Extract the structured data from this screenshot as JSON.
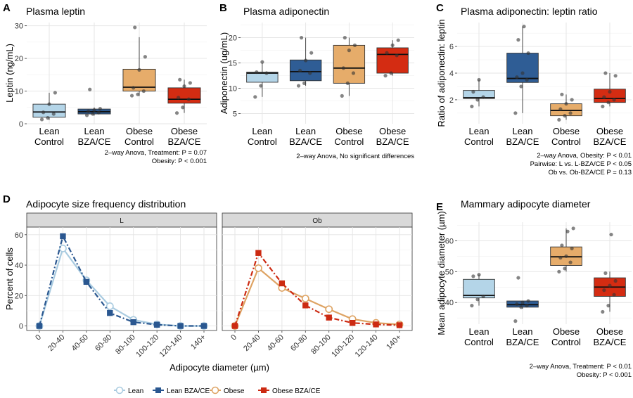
{
  "chart_data": [
    {
      "id": "A",
      "type": "box",
      "title": "Plasma leptin",
      "ylabel": "Leptin (ng/mL)",
      "ylim": [
        0,
        31
      ],
      "yticks": [
        0,
        10,
        20,
        30
      ],
      "categories": [
        "Lean\nControl",
        "Lean\nBZA/CE",
        "Obese\nControl",
        "Obese\nBZA/CE"
      ],
      "boxes": [
        {
          "q1": 2.0,
          "median": 3.6,
          "q3": 6.0,
          "lo": 1.2,
          "hi": 9.5,
          "points": [
            1.3,
            1.8,
            3.0,
            3.5,
            6.0,
            9.5
          ]
        },
        {
          "q1": 3.0,
          "median": 3.7,
          "q3": 4.5,
          "lo": 2.5,
          "hi": 5.0,
          "points": [
            2.6,
            3.0,
            3.4,
            3.8,
            4.2,
            4.6,
            10.5
          ]
        },
        {
          "q1": 10.0,
          "median": 11.2,
          "q3": 16.7,
          "lo": 8.5,
          "hi": 26.5,
          "points": [
            8.6,
            9.0,
            10.0,
            11.0,
            16.5,
            20.5,
            29.5
          ]
        },
        {
          "q1": 6.3,
          "median": 7.5,
          "q3": 11.0,
          "lo": 3.3,
          "hi": 13.5,
          "points": [
            3.3,
            5.0,
            7.5,
            8.0,
            11.5,
            12.5,
            13.5
          ]
        }
      ],
      "notes": [
        "2–way Anova, Treatment: P = 0.07",
        "Obesity: P < 0.001"
      ]
    },
    {
      "id": "B",
      "type": "box",
      "title": "Plasma adiponectin",
      "ylabel": "Adiponectin (ug/mL)",
      "ylim": [
        3,
        23
      ],
      "yticks": [
        5,
        10,
        15,
        20
      ],
      "categories": [
        "Lean\nControl",
        "Lean\nBZA/CE",
        "Obese\nControl",
        "Obese\nBZA/CE"
      ],
      "boxes": [
        {
          "q1": 11.2,
          "median": 13.0,
          "q3": 13.2,
          "lo": 8.3,
          "hi": 15.0,
          "points": [
            8.3,
            10.5,
            13.0,
            13.2,
            15.2
          ]
        },
        {
          "q1": 11.5,
          "median": 13.3,
          "q3": 15.6,
          "lo": 10.5,
          "hi": 20.0,
          "points": [
            10.5,
            11.0,
            13.0,
            13.5,
            15.5,
            17.0,
            20.0
          ]
        },
        {
          "q1": 11.0,
          "median": 14.0,
          "q3": 18.5,
          "lo": 8.5,
          "hi": 20.0,
          "points": [
            8.5,
            11.0,
            13.0,
            14.0,
            17.5,
            18.5,
            20.0
          ]
        },
        {
          "q1": 13.0,
          "median": 16.7,
          "q3": 18.0,
          "lo": 12.5,
          "hi": 19.5,
          "points": [
            12.5,
            13.0,
            16.5,
            17.0,
            18.5,
            19.5
          ]
        }
      ],
      "notes": [
        "2–way Anova, No significant differences"
      ]
    },
    {
      "id": "C",
      "type": "box",
      "title": "Plasma adiponectin: leptin ratio",
      "ylabel": "Ratio of adiponectin: leptin",
      "ylim": [
        0.2,
        7.8
      ],
      "yticks": [
        2,
        4,
        6
      ],
      "categories": [
        "Lean\nControl",
        "Lean\nBZA/CE",
        "Obese\nControl",
        "Obese\nBZA/CE"
      ],
      "boxes": [
        {
          "q1": 2.1,
          "median": 2.15,
          "q3": 2.7,
          "lo": 1.5,
          "hi": 3.5,
          "points": [
            1.5,
            2.0,
            2.2,
            2.6,
            3.5
          ]
        },
        {
          "q1": 3.3,
          "median": 3.6,
          "q3": 5.5,
          "lo": 1.0,
          "hi": 7.5,
          "points": [
            1.0,
            3.0,
            3.5,
            3.7,
            4.0,
            5.5,
            6.5,
            7.5
          ]
        },
        {
          "q1": 0.8,
          "median": 1.2,
          "q3": 1.7,
          "lo": 0.5,
          "hi": 2.4,
          "points": [
            0.5,
            0.8,
            1.0,
            1.3,
            1.7,
            2.0,
            2.4
          ]
        },
        {
          "q1": 1.8,
          "median": 2.1,
          "q3": 2.8,
          "lo": 1.5,
          "hi": 4.0,
          "points": [
            1.5,
            1.8,
            2.0,
            2.2,
            2.6,
            3.8,
            4.0
          ]
        }
      ],
      "notes": [
        "2–way Anova, Obesity: P < 0.01",
        "Pairwise: L vs. L-BZA/CE P < 0.05",
        "Ob vs. Ob-BZA/CE P = 0.13"
      ]
    },
    {
      "id": "D",
      "type": "line",
      "title": "Adipocyte size frequency distribution",
      "ylabel": "Percent of cells",
      "xlabel": "Adipocyte diameter (µm)",
      "ylim": [
        -3,
        65
      ],
      "yticks": [
        0,
        20,
        40,
        60
      ],
      "x": [
        "0",
        "20-40",
        "40-60",
        "60-80",
        "80-100",
        "100-120",
        "120-140",
        "140+"
      ],
      "facets": [
        {
          "strip": "L",
          "series": [
            {
              "name": "Lean",
              "color": "#a9cbe0",
              "marker": "circle-open",
              "dash": false,
              "values": [
                0,
                51,
                30,
                13,
                4,
                1,
                0,
                0
              ]
            },
            {
              "name": "Lean BZA/CE",
              "color": "#2a5790",
              "marker": "square",
              "dash": true,
              "values": [
                0,
                59,
                29,
                8.5,
                2.5,
                0.8,
                0,
                0
              ]
            }
          ]
        },
        {
          "strip": "Ob",
          "series": [
            {
              "name": "Obese",
              "color": "#dea363",
              "marker": "circle-open",
              "dash": false,
              "values": [
                0,
                38,
                25,
                18,
                11,
                4.5,
                2,
                1
              ]
            },
            {
              "name": "Obese BZA/CE",
              "color": "#cc2a12",
              "marker": "square",
              "dash": true,
              "values": [
                0,
                48,
                28,
                13.5,
                5.5,
                2,
                1,
                0.5
              ]
            }
          ]
        }
      ],
      "legend": [
        {
          "name": "Lean",
          "color": "#a9cbe0",
          "marker": "circle-open"
        },
        {
          "name": "Lean BZA/CE",
          "color": "#2a5790",
          "marker": "square"
        },
        {
          "name": "Obese",
          "color": "#dea363",
          "marker": "circle-open"
        },
        {
          "name": "Obese BZA/CE",
          "color": "#cc2a12",
          "marker": "square"
        }
      ]
    },
    {
      "id": "E",
      "type": "box",
      "title": "Mammary adipocyte diameter",
      "ylabel": "Mean adipocyte diameter (µm)",
      "ylim": [
        33,
        66
      ],
      "yticks": [
        40,
        50,
        60
      ],
      "categories": [
        "Lean\nControl",
        "Lean\nBZA/CE",
        "Obese\nControl",
        "Obese\nBZA/CE"
      ],
      "boxes": [
        {
          "q1": 41.5,
          "median": 42.3,
          "q3": 47.5,
          "lo": 39.0,
          "hi": 49.0,
          "points": [
            39.0,
            41.0,
            42.0,
            48.5,
            49.0
          ]
        },
        {
          "q1": 38.5,
          "median": 39.3,
          "q3": 40.5,
          "lo": 38.0,
          "hi": 40.5,
          "points": [
            34.0,
            38.5,
            39.0,
            39.5,
            40.0,
            40.5,
            48.0
          ]
        },
        {
          "q1": 52.0,
          "median": 54.8,
          "q3": 58.0,
          "lo": 50.0,
          "hi": 64.0,
          "points": [
            50.0,
            51.0,
            53.0,
            54.5,
            55.0,
            57.5,
            58.5,
            63.0,
            64.0
          ]
        },
        {
          "q1": 42.0,
          "median": 45.0,
          "q3": 48.0,
          "lo": 37.0,
          "hi": 50.0,
          "points": [
            37.0,
            39.0,
            42.5,
            44.0,
            45.5,
            47.0,
            49.5,
            62.0
          ]
        }
      ],
      "notes": [
        "2–way Anova, Treatment: P < 0.01",
        "Obesity: P < 0.001"
      ]
    }
  ],
  "box_fills": [
    "#b4d5e8",
    "#2f5d95",
    "#e6ac6a",
    "#d42c12"
  ]
}
